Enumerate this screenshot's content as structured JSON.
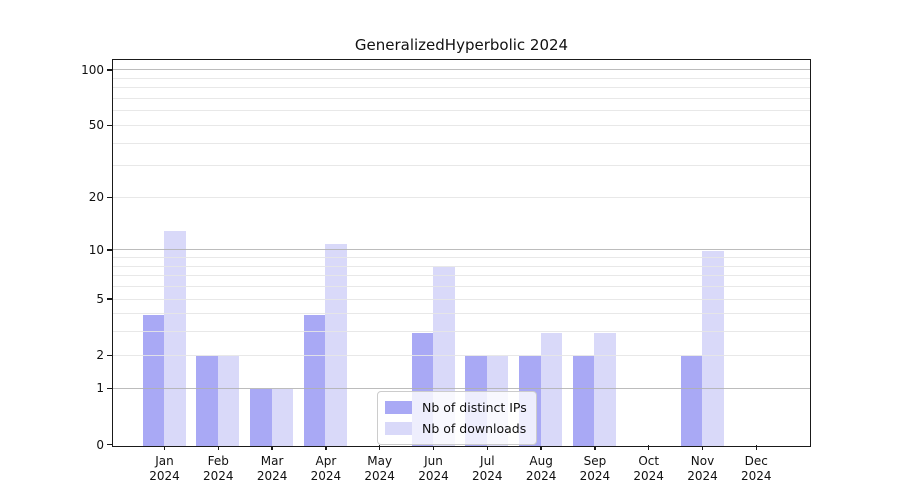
{
  "title": "GeneralizedHyperbolic 2024",
  "chart_data": {
    "type": "bar",
    "title": "GeneralizedHyperbolic 2024",
    "categories": [
      {
        "month": "Jan",
        "year": "2024"
      },
      {
        "month": "Feb",
        "year": "2024"
      },
      {
        "month": "Mar",
        "year": "2024"
      },
      {
        "month": "Apr",
        "year": "2024"
      },
      {
        "month": "May",
        "year": "2024"
      },
      {
        "month": "Jun",
        "year": "2024"
      },
      {
        "month": "Jul",
        "year": "2024"
      },
      {
        "month": "Aug",
        "year": "2024"
      },
      {
        "month": "Sep",
        "year": "2024"
      },
      {
        "month": "Oct",
        "year": "2024"
      },
      {
        "month": "Nov",
        "year": "2024"
      },
      {
        "month": "Dec",
        "year": "2024"
      }
    ],
    "series": [
      {
        "name": "Nb of distinct IPs",
        "color": "#a9a9f5",
        "values": [
          4,
          2,
          1,
          4,
          0,
          3,
          2,
          2,
          2,
          0,
          2,
          0
        ]
      },
      {
        "name": "Nb of downloads",
        "color": "#d9d9f9",
        "values": [
          13,
          2,
          1,
          11,
          0,
          8,
          2,
          3,
          3,
          0,
          10,
          0
        ]
      }
    ],
    "yscale": "log10(value+1)",
    "yticks": [
      0,
      1,
      2,
      5,
      10,
      20,
      50,
      100
    ],
    "major_gridlines": [
      1,
      10,
      100
    ],
    "minor_gridlines": [
      2,
      3,
      4,
      5,
      6,
      7,
      8,
      9,
      20,
      30,
      40,
      50,
      60,
      70,
      80,
      90
    ],
    "ylim": [
      0,
      113
    ],
    "grid": true,
    "legend_position": "bottom-center-inside"
  }
}
